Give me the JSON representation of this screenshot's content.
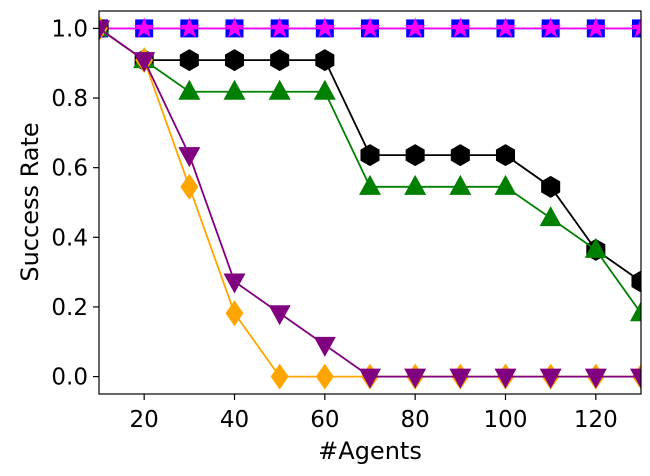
{
  "chart_data": {
    "type": "line",
    "title": "",
    "xlabel": "#Agents",
    "ylabel": "Success Rate",
    "xlim": [
      10,
      130
    ],
    "ylim": [
      -0.05,
      1.05
    ],
    "xticks": [
      20,
      40,
      60,
      80,
      100,
      120
    ],
    "yticks": [
      0.0,
      0.2,
      0.4,
      0.6,
      0.8,
      1.0
    ],
    "ytick_labels": [
      "0.0",
      "0.2",
      "0.4",
      "0.6",
      "0.8",
      "1.0"
    ],
    "grid": false,
    "legend": "none",
    "x": [
      10,
      20,
      30,
      40,
      50,
      60,
      70,
      80,
      90,
      100,
      110,
      120,
      130
    ],
    "series": [
      {
        "color": "#0000ff",
        "marker": "square",
        "values": [
          1.0,
          1.0,
          1.0,
          1.0,
          1.0,
          1.0,
          1.0,
          1.0,
          1.0,
          1.0,
          1.0,
          1.0,
          1.0
        ]
      },
      {
        "color": "#ff00ff",
        "marker": "star",
        "values": [
          1.0,
          1.0,
          1.0,
          1.0,
          1.0,
          1.0,
          1.0,
          1.0,
          1.0,
          1.0,
          1.0,
          1.0,
          1.0
        ]
      },
      {
        "color": "#000000",
        "marker": "hexagon",
        "values": [
          1.0,
          0.909,
          0.909,
          0.909,
          0.909,
          0.909,
          0.636,
          0.636,
          0.636,
          0.636,
          0.545,
          0.364,
          0.273
        ]
      },
      {
        "color": "#008000",
        "marker": "triangle-up",
        "values": [
          1.0,
          0.909,
          0.818,
          0.818,
          0.818,
          0.818,
          0.545,
          0.545,
          0.545,
          0.545,
          0.455,
          0.364,
          0.182
        ]
      },
      {
        "color": "#ffa500",
        "marker": "diamond",
        "values": [
          1.0,
          0.909,
          0.545,
          0.182,
          0.0,
          0.0,
          0.0,
          0.0,
          0.0,
          0.0,
          0.0,
          0.0,
          0.0
        ]
      },
      {
        "color": "#800080",
        "marker": "triangle-down",
        "values": [
          1.0,
          0.909,
          0.636,
          0.273,
          0.182,
          0.091,
          0.0,
          0.0,
          0.0,
          0.0,
          0.0,
          0.0,
          0.0
        ]
      }
    ]
  }
}
